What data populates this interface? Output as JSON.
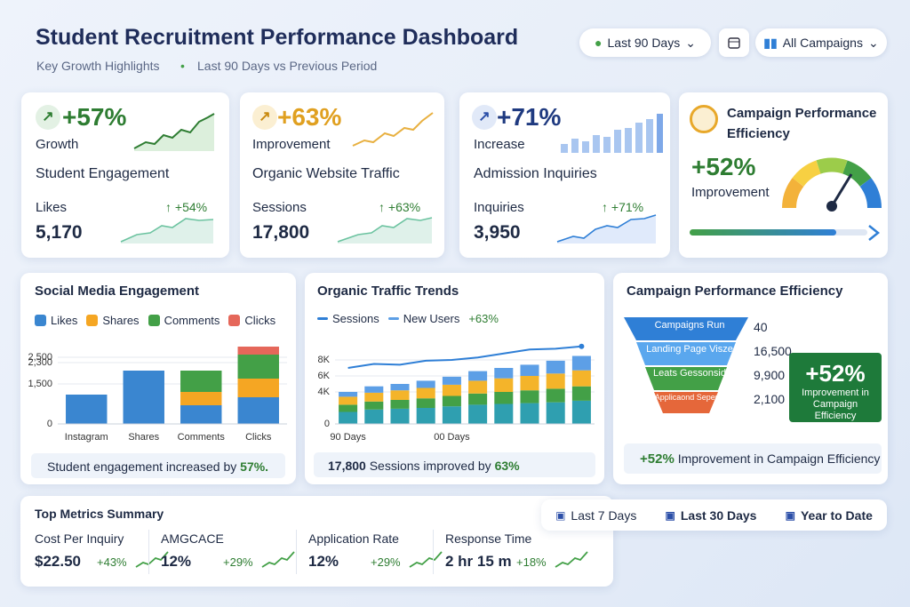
{
  "header": {
    "title": "Student Recruitment Performance Dashboard",
    "subtitle": "Key Growth Highlights",
    "period": "Last 90 Days vs Previous Period",
    "filters": {
      "period": "Last 90 Days",
      "campaign": "All Campaigns"
    }
  },
  "kpis": [
    {
      "value": "+57%",
      "label": "Growth",
      "title": "Student Engagement",
      "metric": "Likes",
      "metric_value": "5,170",
      "change": "+54%"
    },
    {
      "value": "+63%",
      "label": "Improvement",
      "title": "Organic Website Traffic",
      "metric": "Sessions",
      "metric_value": "17,800",
      "change": "+63%"
    },
    {
      "value": "+71%",
      "label": "Increase",
      "title": "Admission Inquiries",
      "metric": "Inquiries",
      "metric_value": "3,950",
      "change": "+71%"
    }
  ],
  "efficiency_card": {
    "title": "Campaign Performance Efficiency",
    "value": "+52%",
    "label": "Improvement"
  },
  "chart_data": [
    {
      "type": "bar",
      "title": "Social Media Engagement",
      "categories": [
        "Instagram",
        "Shares",
        "Comments",
        "Clicks"
      ],
      "series": [
        {
          "name": "Likes",
          "color": "#3a86d0",
          "values": [
            1100,
            2000,
            700,
            1000
          ]
        },
        {
          "name": "Shares",
          "color": "#f5a623",
          "values": [
            0,
            0,
            500,
            700
          ]
        },
        {
          "name": "Comments",
          "color": "#43a047",
          "values": [
            0,
            0,
            800,
            900
          ]
        },
        {
          "name": "Clicks",
          "color": "#e5675a",
          "values": [
            0,
            0,
            0,
            300
          ]
        }
      ],
      "ylim": [
        0,
        3000
      ],
      "yticks": [
        0,
        {
          "value": 1500,
          "label": "1,500"
        },
        {
          "value": 2500,
          "label": "2,500"
        },
        {
          "value": 2300,
          "label": "2,300"
        }
      ],
      "grid": true,
      "footer": [
        "Student engagement increased by",
        "57%."
      ]
    },
    {
      "type": "bar",
      "title": "Organic Traffic Trends",
      "categories": [
        "90 Days",
        null,
        null,
        null,
        "00 Days",
        null,
        null,
        null,
        null,
        null
      ],
      "series": [
        {
          "color": "#2f9fb0",
          "values": [
            1500,
            1800,
            1900,
            2000,
            2200,
            2400,
            2500,
            2600,
            2700,
            2900
          ]
        },
        {
          "color": "#43a047",
          "values": [
            900,
            1000,
            1100,
            1200,
            1300,
            1400,
            1500,
            1600,
            1700,
            1800
          ]
        },
        {
          "color": "#f4b42a",
          "values": [
            1000,
            1100,
            1200,
            1300,
            1400,
            1600,
            1700,
            1800,
            1900,
            2000
          ]
        },
        {
          "name": "New Users",
          "color": "#5d9fe6",
          "values": [
            600,
            800,
            800,
            900,
            1000,
            1200,
            1300,
            1400,
            1600,
            1800
          ]
        },
        {
          "name": "Sessions",
          "type": "line",
          "color": "#2f7fd6",
          "values": [
            7000,
            7500,
            7400,
            7900,
            8000,
            8300,
            8800,
            9300,
            9400,
            9700
          ]
        }
      ],
      "ylim": [
        0,
        10000
      ],
      "yticks": [
        0,
        {
          "value": 4000,
          "label": "4K"
        },
        {
          "value": 6000,
          "label": "6K"
        },
        {
          "value": 8000,
          "label": "8K"
        }
      ],
      "grid": true,
      "annotation": "+63%",
      "footer": [
        "17,800",
        "Sessions improved by",
        "63%"
      ]
    }
  ],
  "funnel": {
    "title": "Campaign Performance Efficiency",
    "stages": [
      {
        "label": "Campaigns Run",
        "value": "40"
      },
      {
        "label": "Landing Page Visze",
        "value": "16,500"
      },
      {
        "label": "Leats Gessonsid",
        "value": "9,900"
      },
      {
        "label": "Applicaond Seperat",
        "value": "2,100"
      }
    ],
    "highlight": {
      "value": "+52%",
      "label": "Improvement in Campaign Efficiency"
    },
    "footer": {
      "value": "+52%",
      "text": "Improvement in Campaign Efficiency"
    }
  },
  "summary": {
    "title": "Top Metrics Summary",
    "ranges": [
      "Last 7 Days",
      "Last 30 Days",
      "Year to Date"
    ],
    "metrics": [
      {
        "label": "Cost Per Inquiry",
        "value": "$22.50",
        "change": "+43%"
      },
      {
        "label": "AMGCACE",
        "value": "12%",
        "change": "+29%"
      },
      {
        "label": "Application Rate",
        "value": "12%",
        "change": "+29%"
      },
      {
        "label": "Response Time",
        "value": "2 hr 15 m",
        "change": "+18%"
      }
    ]
  }
}
